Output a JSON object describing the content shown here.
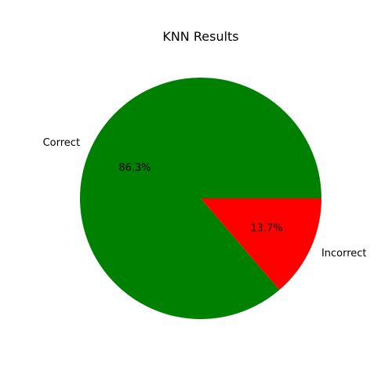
{
  "chart_data": {
    "type": "pie",
    "title": "KNN Results",
    "slices": [
      {
        "label": "Correct",
        "value": 86.3,
        "percent_label": "86.3%",
        "color": "#008000"
      },
      {
        "label": "Incorrect",
        "value": 13.7,
        "percent_label": "13.7%",
        "color": "#ff0000"
      }
    ],
    "start_angle_deg": 0,
    "direction": "counterclockwise"
  }
}
